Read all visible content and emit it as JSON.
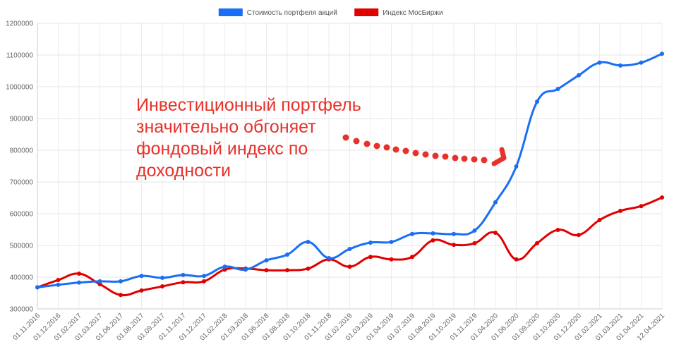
{
  "chart_data": {
    "type": "line",
    "categories": [
      "01.11.2016",
      "01.12.2016",
      "01.02.2017",
      "01.03.2017",
      "01.06.2017",
      "01.08.2017",
      "01.09.2017",
      "01.11.2017",
      "01.12.2017",
      "01.02.2018",
      "01.03.2018",
      "01.06.2018",
      "01.08.2018",
      "01.10.2018",
      "01.11.2018",
      "01.02.2019",
      "01.03.2019",
      "01.04.2019",
      "01.07.2019",
      "01.08.2019",
      "01.10.2019",
      "01.11.2019",
      "01.04.2020",
      "01.06.2020",
      "01.09.2020",
      "01.10.2020",
      "01.12.2020",
      "01.02.2021",
      "01.03.2021",
      "01.04.2021",
      "12.04.2021"
    ],
    "series": [
      {
        "name": "Стоимость портфеля акций",
        "color": "#1a6ef5",
        "values": [
          368000,
          376000,
          383000,
          387000,
          387000,
          404000,
          398000,
          407000,
          404000,
          433000,
          424000,
          453000,
          471000,
          511000,
          460000,
          489000,
          509000,
          511000,
          536000,
          538000,
          536000,
          547000,
          636000,
          749000,
          953000,
          993000,
          1036000,
          1076000,
          1067000,
          1076000,
          1104000
        ]
      },
      {
        "name": "Индекс МосБиржи",
        "color": "#e00000",
        "values": [
          368000,
          391000,
          411000,
          378000,
          344000,
          358000,
          371000,
          384000,
          387000,
          424000,
          427000,
          422000,
          422000,
          427000,
          456000,
          433000,
          464000,
          456000,
          464000,
          516000,
          502000,
          507000,
          540000,
          456000,
          507000,
          549000,
          533000,
          580000,
          609000,
          624000,
          651000
        ]
      }
    ],
    "ylim": [
      300000,
      1200000
    ],
    "yticks": [
      300000,
      400000,
      500000,
      600000,
      700000,
      800000,
      900000,
      1000000,
      1100000,
      1200000
    ],
    "grid": true,
    "legend": "top",
    "annotation": [
      "Инвестиционный портфель",
      "значительно обгоняет",
      "фондовый индекс по",
      "доходности"
    ]
  }
}
